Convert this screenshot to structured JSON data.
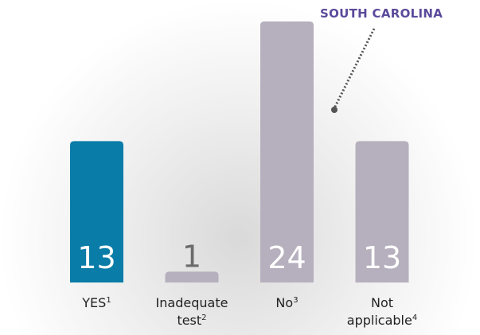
{
  "chart_data": {
    "type": "bar",
    "annotation": "SOUTH CAROLINA",
    "categories": [
      "YES",
      "Inadequate test",
      "No",
      "Not applicable"
    ],
    "footnotes": [
      "1",
      "2",
      "3",
      "4"
    ],
    "values": [
      13,
      1,
      24,
      13
    ],
    "colors": [
      "#0a7ca8",
      "#b6afbd",
      "#b6afbd",
      "#b6afbd"
    ]
  }
}
